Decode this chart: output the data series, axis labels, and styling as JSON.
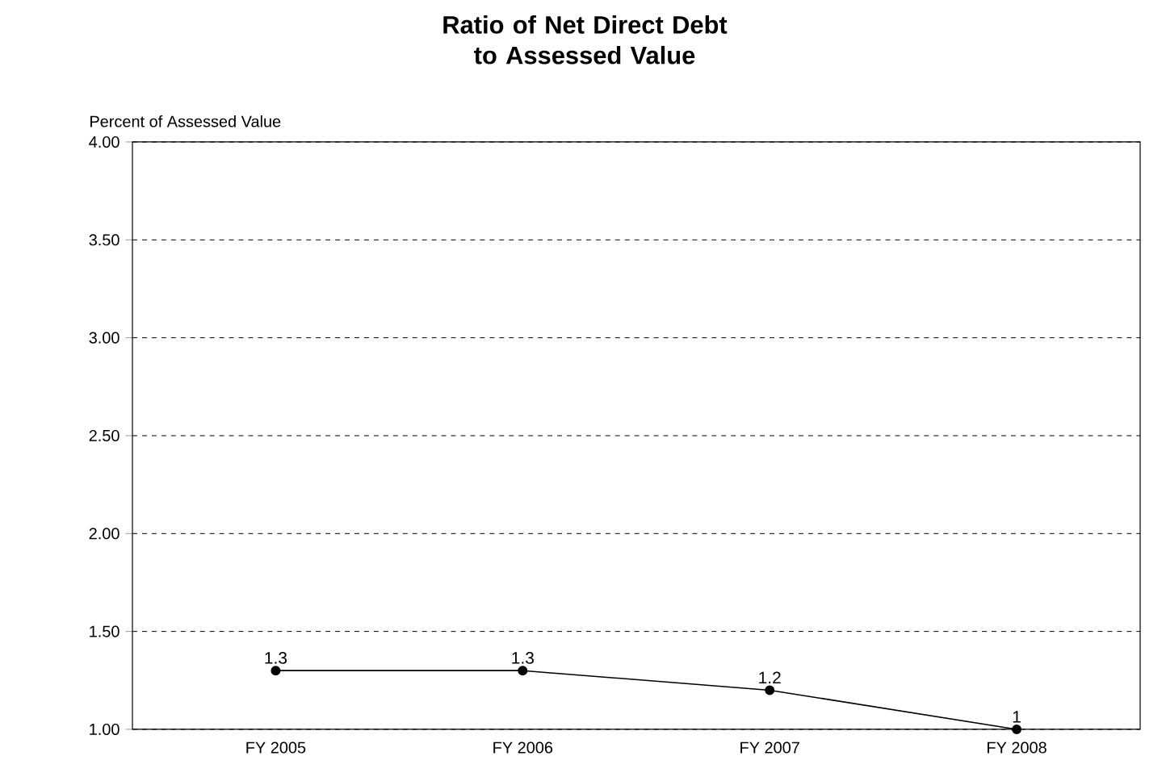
{
  "chart_data": {
    "type": "line",
    "title": "Ratio of Net Direct Debt to Assessed Value",
    "ylabel": "Percent of Assessed Value",
    "categories": [
      "FY 2005",
      "FY 2006",
      "FY 2007",
      "FY 2008"
    ],
    "values": [
      1.3,
      1.3,
      1.2,
      1
    ],
    "color": "#000000",
    "marker": "circle",
    "line_style": "solid",
    "data_labels": true,
    "ylim": [
      1,
      4
    ],
    "yticks": [
      {
        "value": 1,
        "label": "1.00"
      },
      {
        "value": 1.5,
        "label": "1.50"
      },
      {
        "value": 2,
        "label": "2.00"
      },
      {
        "value": 2.5,
        "label": "2.50"
      },
      {
        "value": 3,
        "label": "3.00"
      },
      {
        "value": 3.5,
        "label": "3.50"
      },
      {
        "value": 4,
        "label": "4.00"
      }
    ],
    "grid": "y"
  }
}
